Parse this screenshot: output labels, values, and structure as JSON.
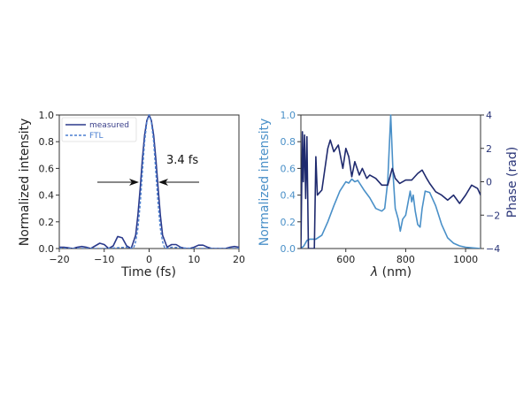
{
  "chart_data": [
    {
      "type": "line",
      "xlabel": "Time (fs)",
      "ylabel": "Normalized intensity",
      "xlim": [
        -20,
        20
      ],
      "ylim": [
        0,
        1
      ],
      "xticks": [
        -20,
        -10,
        0,
        10,
        20
      ],
      "xtick_labels": [
        "−20",
        "−10",
        "0",
        "10",
        "20"
      ],
      "yticks": [
        0,
        0.2,
        0.4,
        0.6,
        0.8,
        1.0
      ],
      "ytick_labels": [
        "0.0",
        "0.2",
        "0.4",
        "0.6",
        "0.8",
        "1.0"
      ],
      "legend_position": "top-left",
      "annotation": "3.4 fs",
      "annotation_level": 0.5,
      "series": [
        {
          "name": "measured",
          "style": "solid",
          "color": "#2b3a8c",
          "x": [
            -20,
            -19,
            -18,
            -17,
            -16,
            -15,
            -14,
            -13,
            -12,
            -11,
            -10,
            -9,
            -8,
            -7,
            -6,
            -5,
            -4,
            -3,
            -2.5,
            -2,
            -1.5,
            -1,
            -0.5,
            0,
            0.5,
            1,
            1.5,
            2,
            2.5,
            3,
            4,
            5,
            6,
            7,
            8,
            9,
            10,
            11,
            12,
            13,
            14,
            15,
            16,
            17,
            18,
            19,
            20
          ],
          "y": [
            0.01,
            0.01,
            0.005,
            0.0,
            0.01,
            0.015,
            0.01,
            0.0,
            0.02,
            0.04,
            0.03,
            0.0,
            0.02,
            0.09,
            0.08,
            0.02,
            0.0,
            0.1,
            0.25,
            0.45,
            0.67,
            0.85,
            0.96,
            1.0,
            0.96,
            0.85,
            0.67,
            0.45,
            0.25,
            0.1,
            0.01,
            0.03,
            0.03,
            0.01,
            0.0,
            0.0,
            0.01,
            0.025,
            0.025,
            0.01,
            0.0,
            0.0,
            0.0,
            0.0,
            0.01,
            0.015,
            0.01
          ]
        },
        {
          "name": "FTL",
          "style": "dashed",
          "color": "#4a7fd0",
          "x": [
            -20,
            -10,
            -5,
            -3.5,
            -3,
            -2.5,
            -2,
            -1.5,
            -1,
            -0.5,
            0,
            0.5,
            1,
            1.5,
            2,
            2.5,
            3,
            3.5,
            5,
            10,
            20
          ],
          "y": [
            0,
            0,
            0.01,
            0.0,
            0.05,
            0.15,
            0.33,
            0.57,
            0.8,
            0.95,
            1.0,
            0.95,
            0.8,
            0.57,
            0.33,
            0.15,
            0.05,
            0.0,
            0.01,
            0,
            0
          ]
        }
      ]
    },
    {
      "type": "line",
      "xlabel": "λ (nm)",
      "xlabel_symbol": "λ",
      "xlabel_unit": " (nm)",
      "ylabel": "Normalized intensity",
      "ylabel_right": "Phase (rad)",
      "xlim": [
        450,
        1050
      ],
      "ylim": [
        0,
        1
      ],
      "ylim_right": [
        -4,
        4
      ],
      "xticks": [
        600,
        800,
        1000
      ],
      "xtick_labels": [
        "600",
        "800",
        "1000"
      ],
      "yticks": [
        0,
        0.2,
        0.4,
        0.6,
        0.8,
        1.0
      ],
      "ytick_labels": [
        "0.0",
        "0.2",
        "0.4",
        "0.6",
        "0.8",
        "1.0"
      ],
      "yticks_right": [
        -4,
        -2,
        0,
        2,
        4
      ],
      "ytick_labels_right": [
        "−4",
        "−2",
        "0",
        "2",
        "4"
      ],
      "series": [
        {
          "name": "intensity",
          "axis": "left",
          "color": "#4a90c8",
          "x": [
            450,
            460,
            470,
            480,
            500,
            520,
            540,
            560,
            580,
            600,
            610,
            620,
            630,
            640,
            660,
            680,
            700,
            720,
            730,
            740,
            750,
            758,
            765,
            775,
            782,
            790,
            800,
            810,
            815,
            820,
            825,
            832,
            840,
            848,
            855,
            865,
            880,
            900,
            920,
            940,
            960,
            980,
            1000,
            1050
          ],
          "y": [
            0,
            0.02,
            0.06,
            0.07,
            0.07,
            0.1,
            0.2,
            0.32,
            0.43,
            0.5,
            0.49,
            0.52,
            0.5,
            0.51,
            0.44,
            0.38,
            0.3,
            0.28,
            0.3,
            0.5,
            1.0,
            0.55,
            0.3,
            0.22,
            0.13,
            0.22,
            0.25,
            0.37,
            0.43,
            0.35,
            0.4,
            0.28,
            0.18,
            0.16,
            0.3,
            0.43,
            0.42,
            0.32,
            0.18,
            0.08,
            0.04,
            0.02,
            0.01,
            0.0
          ]
        },
        {
          "name": "phase",
          "axis": "right",
          "color": "#1f2a6e",
          "x": [
            450,
            455,
            458,
            462,
            466,
            470,
            475,
            485,
            495,
            500,
            505,
            520,
            540,
            548,
            560,
            575,
            590,
            600,
            610,
            620,
            630,
            645,
            655,
            670,
            680,
            700,
            720,
            740,
            755,
            765,
            780,
            800,
            820,
            840,
            855,
            870,
            880,
            900,
            920,
            940,
            960,
            980,
            1000,
            1020,
            1040,
            1050
          ],
          "y": [
            -4,
            3.0,
            0,
            2.8,
            -1,
            2.7,
            -4,
            -4,
            -4,
            1.5,
            -0.8,
            -0.5,
            2.0,
            2.5,
            1.8,
            2.2,
            0.8,
            2.0,
            1.5,
            0.3,
            1.2,
            0.4,
            0.8,
            0.2,
            0.4,
            0.2,
            -0.2,
            -0.2,
            0.8,
            0.2,
            -0.1,
            0.1,
            0.1,
            0.5,
            0.7,
            0.2,
            -0.1,
            -0.6,
            -0.8,
            -1.1,
            -0.8,
            -1.3,
            -0.8,
            -0.2,
            -0.4,
            -0.8
          ]
        }
      ]
    }
  ]
}
